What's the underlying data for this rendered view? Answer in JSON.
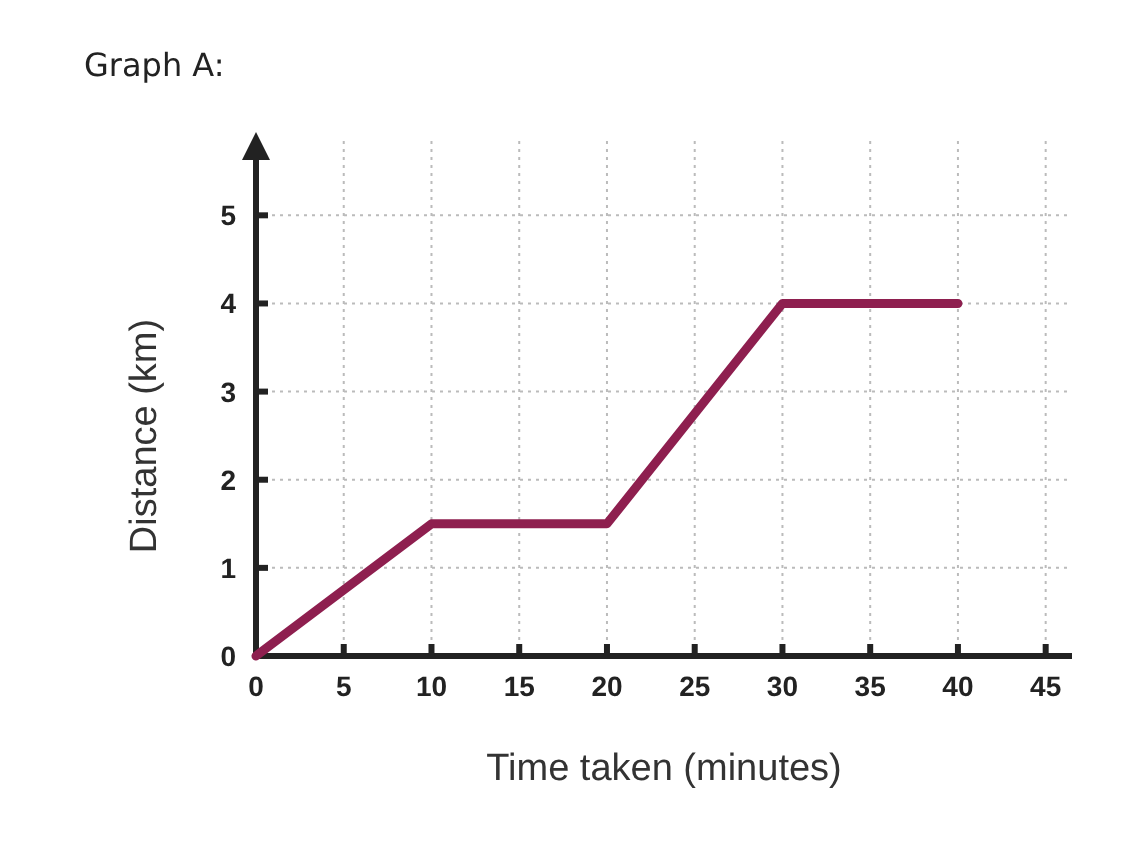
{
  "chart_data": {
    "type": "line",
    "title": "Graph A:",
    "xlabel": "Time taken (minutes)",
    "ylabel": "Distance (km)",
    "x": [
      0,
      10,
      20,
      30,
      40
    ],
    "series": [
      {
        "color": "#8e1f4f",
        "values": [
          0,
          1.5,
          1.5,
          4,
          4
        ]
      }
    ],
    "xlim": [
      0,
      46.5
    ],
    "ylim": [
      0,
      5.9
    ],
    "xticks": [
      0,
      5,
      10,
      15,
      20,
      25,
      30,
      35,
      40,
      45
    ],
    "yticks": [
      0,
      1,
      2,
      3,
      4,
      5
    ],
    "grid": true,
    "marker": "none",
    "line_style": "solid"
  }
}
